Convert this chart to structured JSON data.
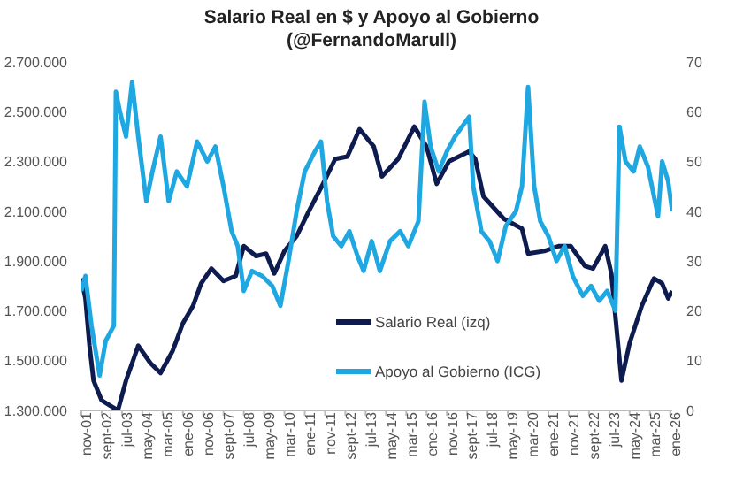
{
  "chart_data": {
    "type": "line",
    "title": "Salario Real en $ y Apoyo al Gobierno",
    "subtitle": "(@FernandoMarull)",
    "xlim": [
      "2001-11",
      "2026-02"
    ],
    "xticks": [
      {
        "value": "2001-11",
        "label": "nov-01"
      },
      {
        "value": "2002-09",
        "label": "sept-02"
      },
      {
        "value": "2003-07",
        "label": "jul-03"
      },
      {
        "value": "2004-05",
        "label": "may-04"
      },
      {
        "value": "2005-03",
        "label": "mar-05"
      },
      {
        "value": "2006-01",
        "label": "ene-06"
      },
      {
        "value": "2006-11",
        "label": "nov-06"
      },
      {
        "value": "2007-09",
        "label": "sept-07"
      },
      {
        "value": "2008-07",
        "label": "jul-08"
      },
      {
        "value": "2009-05",
        "label": "may-09"
      },
      {
        "value": "2010-03",
        "label": "mar-10"
      },
      {
        "value": "2011-01",
        "label": "ene-11"
      },
      {
        "value": "2011-11",
        "label": "nov-11"
      },
      {
        "value": "2012-09",
        "label": "sept-12"
      },
      {
        "value": "2013-07",
        "label": "jul-13"
      },
      {
        "value": "2014-05",
        "label": "may-14"
      },
      {
        "value": "2015-03",
        "label": "mar-15"
      },
      {
        "value": "2016-01",
        "label": "ene-16"
      },
      {
        "value": "2016-11",
        "label": "nov-16"
      },
      {
        "value": "2017-09",
        "label": "sept-17"
      },
      {
        "value": "2018-07",
        "label": "jul-18"
      },
      {
        "value": "2019-05",
        "label": "may-19"
      },
      {
        "value": "2020-03",
        "label": "mar-20"
      },
      {
        "value": "2021-01",
        "label": "ene-21"
      },
      {
        "value": "2021-11",
        "label": "nov-21"
      },
      {
        "value": "2022-09",
        "label": "sept-22"
      },
      {
        "value": "2023-07",
        "label": "jul-23"
      },
      {
        "value": "2024-05",
        "label": "may-24"
      },
      {
        "value": "2025-03",
        "label": "mar-25"
      },
      {
        "value": "2026-01",
        "label": "ene-26"
      }
    ],
    "ylim": [
      1300000,
      2700000
    ],
    "yticks": [
      {
        "value": 1300000,
        "label": "1.300.000"
      },
      {
        "value": 1500000,
        "label": "1.500.000"
      },
      {
        "value": 1700000,
        "label": "1.700.000"
      },
      {
        "value": 1900000,
        "label": "1.900.000"
      },
      {
        "value": 2100000,
        "label": "2.100.000"
      },
      {
        "value": 2300000,
        "label": "2.300.000"
      },
      {
        "value": 2500000,
        "label": "2.500.000"
      },
      {
        "value": 2700000,
        "label": "2.700.000"
      }
    ],
    "y2lim": [
      0,
      70
    ],
    "y2ticks": [
      0,
      10,
      20,
      30,
      40,
      50,
      60,
      70
    ],
    "grid": false,
    "legend": "bottom",
    "marker": "none",
    "line_style": "solid",
    "series": [
      {
        "name": "Salario Real (izq)",
        "color": "#0d1b4f",
        "x": [
          "2001-11",
          "2002-01",
          "2002-03",
          "2002-05",
          "2002-09",
          "2003-01",
          "2003-05",
          "2003-09",
          "2004-03",
          "2004-09",
          "2005-02",
          "2005-08",
          "2006-01",
          "2006-06",
          "2006-10",
          "2007-03",
          "2007-09",
          "2008-03",
          "2008-07",
          "2009-01",
          "2009-06",
          "2009-10",
          "2010-03",
          "2010-09",
          "2011-03",
          "2011-10",
          "2012-04",
          "2012-10",
          "2013-04",
          "2013-11",
          "2014-03",
          "2014-11",
          "2015-07",
          "2016-01",
          "2016-06",
          "2016-12",
          "2017-10",
          "2018-01",
          "2018-05",
          "2019-03",
          "2019-12",
          "2020-03",
          "2020-11",
          "2021-06",
          "2021-12",
          "2022-07",
          "2022-11",
          "2023-05",
          "2023-08",
          "2024-01",
          "2024-05",
          "2024-11",
          "2025-05",
          "2025-09",
          "2025-12",
          "2026-02"
        ],
        "values": [
          1830000,
          1750000,
          1560000,
          1420000,
          1340000,
          1320000,
          1300000,
          1420000,
          1560000,
          1490000,
          1450000,
          1540000,
          1650000,
          1720000,
          1810000,
          1870000,
          1820000,
          1840000,
          1960000,
          1920000,
          1930000,
          1850000,
          1940000,
          2000000,
          2100000,
          2210000,
          2310000,
          2320000,
          2430000,
          2360000,
          2240000,
          2310000,
          2440000,
          2360000,
          2210000,
          2300000,
          2340000,
          2310000,
          2160000,
          2070000,
          2030000,
          1930000,
          1940000,
          1960000,
          1960000,
          1880000,
          1870000,
          1960000,
          1850000,
          1420000,
          1570000,
          1720000,
          1830000,
          1810000,
          1750000,
          1780000
        ]
      },
      {
        "name": "Apoyo al Gobierno (ICG)",
        "color": "#1fa7e1",
        "axis": "y2",
        "x": [
          "2001-11",
          "2002-01",
          "2002-04",
          "2002-08",
          "2002-11",
          "2003-03",
          "2003-04",
          "2003-06",
          "2003-09",
          "2003-12",
          "2004-03",
          "2004-07",
          "2004-10",
          "2005-02",
          "2005-06",
          "2005-10",
          "2006-03",
          "2006-08",
          "2007-01",
          "2007-05",
          "2007-09",
          "2008-01",
          "2008-04",
          "2008-07",
          "2008-11",
          "2009-04",
          "2009-09",
          "2010-01",
          "2010-05",
          "2010-09",
          "2011-01",
          "2011-06",
          "2011-09",
          "2011-12",
          "2012-03",
          "2012-07",
          "2012-11",
          "2013-03",
          "2013-06",
          "2013-10",
          "2014-02",
          "2014-07",
          "2014-12",
          "2015-04",
          "2015-09",
          "2015-12",
          "2016-03",
          "2016-07",
          "2016-11",
          "2017-03",
          "2017-10",
          "2017-12",
          "2018-04",
          "2018-08",
          "2018-12",
          "2019-04",
          "2019-09",
          "2019-12",
          "2020-03",
          "2020-06",
          "2020-09",
          "2021-01",
          "2021-05",
          "2021-09",
          "2022-01",
          "2022-06",
          "2022-10",
          "2023-02",
          "2023-06",
          "2023-10",
          "2023-12",
          "2024-03",
          "2024-07",
          "2024-10",
          "2025-02",
          "2025-05",
          "2025-07",
          "2025-09",
          "2025-12",
          "2026-02"
        ],
        "values": [
          24,
          27,
          17,
          7,
          14,
          17,
          64,
          60,
          55,
          66,
          55,
          42,
          48,
          55,
          42,
          48,
          45,
          54,
          50,
          53,
          45,
          36,
          33,
          24,
          28,
          27,
          25,
          21,
          30,
          40,
          48,
          52,
          54,
          42,
          35,
          33,
          36,
          31,
          28,
          34,
          28,
          34,
          36,
          33,
          38,
          62,
          53,
          48,
          52,
          55,
          59,
          45,
          36,
          34,
          30,
          37,
          40,
          45,
          65,
          45,
          38,
          35,
          30,
          33,
          27,
          23,
          25,
          22,
          24,
          20,
          57,
          50,
          48,
          53,
          49,
          43,
          39,
          50,
          46,
          40
        ]
      }
    ]
  }
}
